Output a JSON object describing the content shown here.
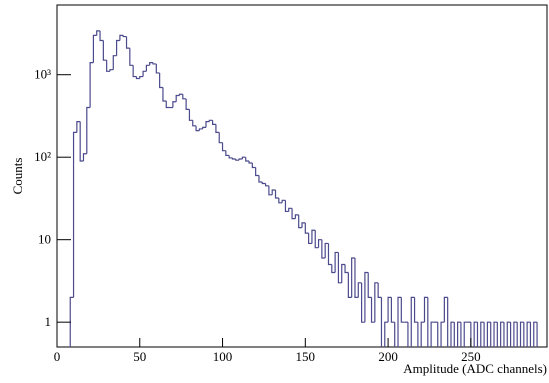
{
  "chart_data": {
    "type": "histogram",
    "xlabel": "Amplitude (ADC channels)",
    "ylabel": "Counts",
    "color": "#4b4a8c",
    "log_y": true,
    "xlim": [
      0,
      296
    ],
    "ylim": [
      0.5,
      7000
    ],
    "xticks": [
      0,
      50,
      100,
      150,
      200,
      250
    ],
    "yticks": [
      1,
      10,
      {
        "value": 100,
        "label": "10²"
      },
      {
        "value": 1000,
        "label": "10³"
      }
    ],
    "bins": [
      0,
      2,
      4,
      6,
      8,
      10,
      12,
      14,
      16,
      18,
      20,
      22,
      24,
      26,
      28,
      30,
      32,
      34,
      36,
      38,
      40,
      42,
      44,
      46,
      48,
      50,
      52,
      54,
      56,
      58,
      60,
      62,
      64,
      66,
      68,
      70,
      72,
      74,
      76,
      78,
      80,
      82,
      84,
      86,
      88,
      90,
      92,
      94,
      96,
      98,
      100,
      102,
      104,
      106,
      108,
      110,
      112,
      114,
      116,
      118,
      120,
      122,
      124,
      126,
      128,
      130,
      132,
      134,
      136,
      138,
      140,
      142,
      144,
      146,
      148,
      150,
      152,
      154,
      156,
      158,
      160,
      162,
      164,
      166,
      168,
      170,
      172,
      174,
      176,
      178,
      180,
      182,
      184,
      186,
      188,
      190,
      192,
      194,
      196,
      198,
      200,
      202,
      204,
      206,
      208,
      210,
      212,
      214,
      216,
      218,
      220,
      222,
      224,
      226,
      228,
      230,
      232,
      234,
      236,
      238,
      240,
      242,
      244,
      246,
      248,
      250,
      252,
      254,
      256,
      258,
      260,
      262,
      264,
      266,
      268,
      270,
      272,
      274,
      276,
      278,
      280,
      282,
      284,
      286,
      288,
      290,
      292
    ],
    "values": [
      0,
      0,
      0,
      0,
      2,
      200,
      270,
      90,
      110,
      400,
      1400,
      3000,
      3400,
      2600,
      1500,
      1100,
      1150,
      1700,
      2600,
      3000,
      2900,
      2100,
      1300,
      950,
      900,
      950,
      1100,
      1300,
      1400,
      1350,
      1050,
      700,
      480,
      400,
      400,
      470,
      560,
      580,
      510,
      380,
      280,
      240,
      210,
      220,
      230,
      270,
      280,
      250,
      200,
      150,
      120,
      105,
      98,
      95,
      92,
      95,
      100,
      90,
      85,
      75,
      60,
      50,
      48,
      45,
      35,
      40,
      32,
      28,
      30,
      22,
      24,
      18,
      20,
      14,
      16,
      12,
      9,
      13,
      8,
      10,
      6,
      9,
      5,
      4,
      7,
      3,
      5,
      4,
      2,
      6,
      2,
      3,
      1,
      4,
      2,
      1,
      3,
      2,
      0,
      1,
      2,
      1,
      0,
      2,
      1,
      1,
      0,
      2,
      1,
      0,
      1,
      2,
      0,
      1,
      1,
      0,
      1,
      2,
      0,
      1,
      0,
      1,
      0,
      1,
      1,
      0,
      1,
      0,
      1,
      0,
      1,
      0,
      1,
      0,
      1,
      0,
      1,
      0,
      1,
      0,
      1,
      0,
      1,
      0,
      1,
      0
    ]
  }
}
